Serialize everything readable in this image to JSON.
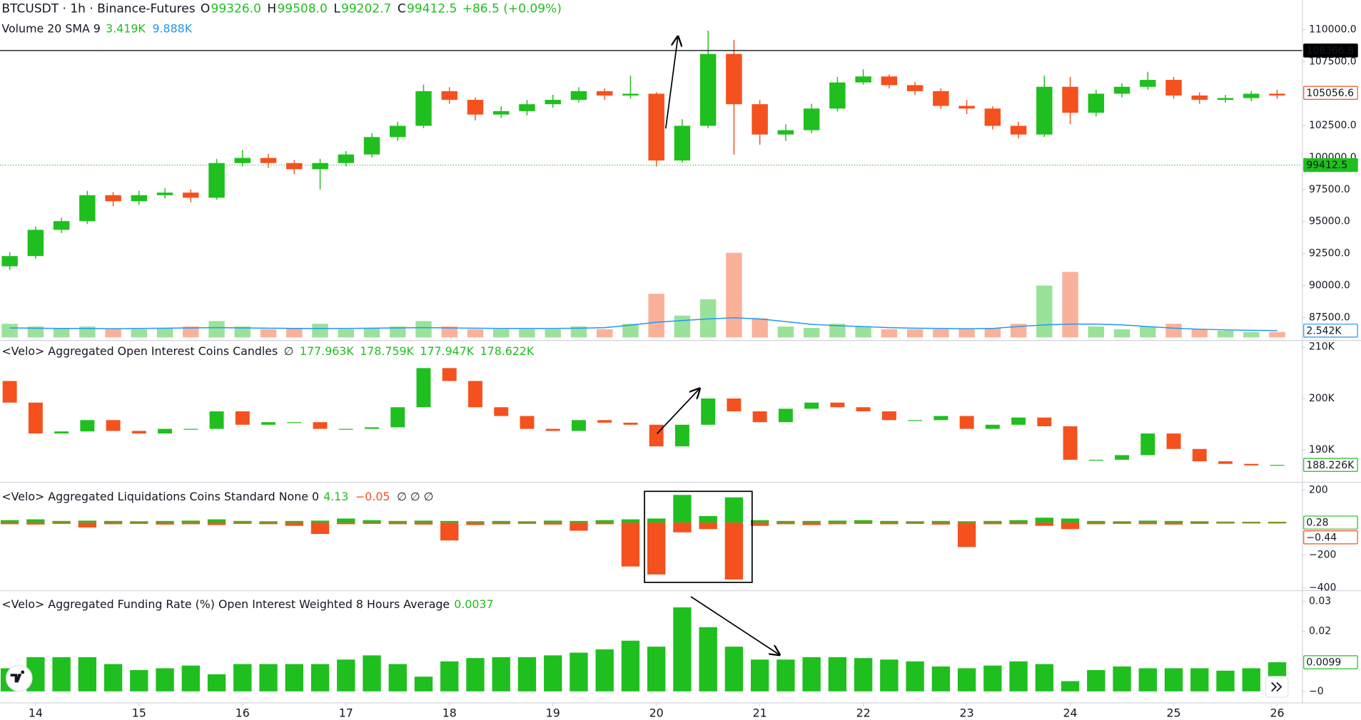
{
  "chart_data": [
    {
      "type": "candlestick",
      "title": "BTCUSDT · 1h · Binance-Futures",
      "legend": [
        {
          "label": "O",
          "value": "99326.0"
        },
        {
          "label": "H",
          "value": "99508.0"
        },
        {
          "label": "L",
          "value": "99202.7"
        },
        {
          "label": "C",
          "value": "99412.5"
        }
      ],
      "change": "+86.5 (+0.09%)",
      "up_color": "#1fbf1f",
      "down_color": "#f4511e",
      "x": [
        13.75,
        14,
        14.25,
        14.5,
        14.75,
        15,
        15.25,
        15.5,
        15.75,
        16,
        16.25,
        16.5,
        16.75,
        17,
        17.25,
        17.5,
        17.75,
        18,
        18.25,
        18.5,
        18.75,
        19,
        19.25,
        19.5,
        19.75,
        20,
        20.25,
        20.5,
        20.75,
        21,
        21.25,
        21.5,
        21.75,
        22,
        22.25,
        22.5,
        22.75,
        23,
        23.25,
        23.5,
        23.75,
        24,
        24.25,
        24.5,
        24.75,
        25,
        25.25,
        25.5,
        25.75,
        26
      ],
      "xlim": [
        13.656,
        26.24
      ],
      "xticks": [
        14,
        15,
        16,
        17,
        18,
        19,
        20,
        21,
        22,
        23,
        24,
        25,
        26
      ],
      "open": [
        91500,
        92300,
        94350,
        95030,
        97060,
        96590,
        97060,
        97260,
        96860,
        99570,
        99970,
        99570,
        99090,
        99570,
        100240,
        101600,
        102480,
        105190,
        104510,
        103360,
        103630,
        104170,
        104510,
        105190,
        104850,
        104990,
        99770,
        102480,
        108100,
        104170,
        101800,
        102140,
        103830,
        105870,
        106340,
        105660,
        105190,
        104040,
        103830,
        102480,
        101800,
        105530,
        103500,
        104990,
        105530,
        106070,
        104850,
        104510,
        104650,
        104990
      ],
      "high": [
        92600,
        94600,
        95300,
        97400,
        97300,
        97400,
        97600,
        97500,
        99900,
        100600,
        100300,
        99800,
        99900,
        100500,
        101900,
        102800,
        105700,
        105500,
        104700,
        104000,
        104500,
        104900,
        105500,
        105400,
        106400,
        105100,
        103000,
        109930,
        109200,
        104500,
        102600,
        104200,
        106300,
        106900,
        106500,
        105900,
        105400,
        104500,
        104000,
        102800,
        106400,
        106300,
        105300,
        105800,
        106700,
        106300,
        105100,
        104900,
        105200,
        105300
      ],
      "low": [
        91200,
        92100,
        94100,
        94800,
        96200,
        96300,
        96800,
        96500,
        96700,
        99300,
        99200,
        98700,
        97500,
        99300,
        100000,
        101300,
        102300,
        104200,
        102900,
        103100,
        103300,
        103900,
        104300,
        104500,
        104600,
        99300,
        99600,
        102300,
        100240,
        101000,
        101300,
        101900,
        103600,
        105700,
        105400,
        104900,
        103800,
        103400,
        102200,
        101500,
        101600,
        102600,
        103200,
        104700,
        105300,
        104600,
        104200,
        104300,
        104400,
        104600
      ],
      "close": [
        92300,
        94350,
        95030,
        97060,
        96590,
        97060,
        97260,
        96860,
        99570,
        99970,
        99570,
        99090,
        99570,
        100240,
        101600,
        102480,
        105190,
        104510,
        103360,
        103630,
        104170,
        104510,
        105190,
        104850,
        104990,
        99770,
        102480,
        108100,
        104170,
        101800,
        102140,
        103830,
        105870,
        106340,
        105660,
        105190,
        104040,
        103830,
        102480,
        101800,
        105530,
        103500,
        104990,
        105530,
        106070,
        104850,
        104510,
        104650,
        104990,
        104850
      ],
      "ylim": [
        85870,
        112300
      ],
      "yticks": [
        {
          "value": 87500,
          "label": "87500.0"
        },
        {
          "value": 90000,
          "label": "90000.0"
        },
        {
          "value": 92500,
          "label": "92500.0"
        },
        {
          "value": 95000,
          "label": "95000.0"
        },
        {
          "value": 97500,
          "label": "97500.0"
        },
        {
          "value": 100000,
          "label": "100000.0"
        },
        {
          "value": 102500,
          "label": "102500.0"
        },
        {
          "value": 105000,
          "label": "105000.0"
        },
        {
          "value": 107500,
          "label": "107500.0"
        },
        {
          "value": 110000,
          "label": "110000.0"
        }
      ],
      "grid": false,
      "markers": [
        {
          "value": 108366.8,
          "style": "line",
          "color": "#000000"
        },
        {
          "value": 105056.6,
          "style": "label",
          "color": "#f4511e"
        },
        {
          "value": 99412.5,
          "style": "dotted",
          "color": "#1fbf1f"
        }
      ],
      "volume": {
        "title": "Volume 20 SMA 9",
        "legend": [
          "3.419K",
          "9.888K"
        ],
        "values": [
          5,
          4,
          3.5,
          4,
          3,
          3,
          3.5,
          4,
          6,
          4,
          3,
          3.5,
          5,
          3,
          3.5,
          4,
          6,
          4,
          3,
          3,
          3,
          3,
          4,
          3,
          5,
          16,
          8,
          14,
          31,
          7,
          4,
          3.5,
          5,
          4,
          3,
          3,
          3,
          3,
          3.5,
          5,
          19,
          24,
          4,
          3,
          4,
          5,
          3,
          2.5,
          2,
          2
        ],
        "ylim": [
          0,
          33
        ],
        "sma": {
          "color": "#2196f3",
          "values": [
            3.5,
            3.4,
            3.3,
            3.3,
            3.2,
            3.3,
            3.4,
            3.5,
            3.6,
            3.5,
            3.4,
            3.3,
            3.3,
            3.3,
            3.4,
            3.5,
            3.6,
            3.5,
            3.4,
            3.3,
            3.3,
            3.3,
            3.4,
            3.6,
            4.5,
            5.6,
            6.2,
            6.8,
            7.2,
            6.8,
            5.8,
            4.8,
            4.3,
            4.0,
            3.6,
            3.4,
            3.3,
            3.2,
            3.3,
            4.0,
            4.6,
            4.9,
            4.9,
            4.6,
            4.0,
            3.4,
            3.0,
            2.8,
            2.6,
            2.5
          ]
        },
        "value_label": "2.542K"
      }
    },
    {
      "type": "candlestick",
      "title": "<Velo> Aggregated Open Interest Coins Candles",
      "empty_symbol": "∅",
      "legend_values": [
        "177.963K",
        "178.759K",
        "177.947K",
        "178.622K"
      ],
      "up_color": "#1fbf1f",
      "down_color": "#f4511e",
      "open": [
        203.4,
        199.2,
        193.2,
        193.6,
        195.8,
        193.7,
        193.2,
        194.1,
        194.1,
        197.5,
        194.9,
        195.4,
        195.4,
        194.1,
        194.1,
        194.4,
        198.3,
        205.9,
        203.4,
        198.3,
        196.6,
        194.1,
        193.7,
        195.8,
        195.3,
        194.9,
        190.7,
        194.9,
        200,
        197.5,
        195.4,
        198.0,
        199.2,
        198.3,
        197.5,
        195.8,
        195.8,
        196.6,
        194.1,
        194.9,
        196.3,
        194.6,
        188.1,
        188.1,
        189.0,
        193.2,
        190.2,
        187.8,
        187.3,
        187.0
      ],
      "close": [
        199.2,
        193.2,
        193.6,
        195.8,
        193.7,
        193.2,
        194.1,
        194.1,
        197.5,
        194.9,
        195.4,
        195.4,
        194.1,
        194.1,
        194.4,
        198.3,
        205.9,
        203.4,
        198.3,
        196.6,
        194.1,
        193.7,
        195.8,
        195.3,
        194.9,
        190.7,
        194.9,
        200,
        197.5,
        195.4,
        198.0,
        199.2,
        198.3,
        197.5,
        195.8,
        195.8,
        196.6,
        194.1,
        194.9,
        196.3,
        194.6,
        188.1,
        188.1,
        189.0,
        193.2,
        190.2,
        187.8,
        187.3,
        187.0,
        187.1
      ],
      "ylim": [
        183.9,
        210
      ],
      "yticks": [
        {
          "value": 190,
          "label": "190K"
        },
        {
          "value": 200,
          "label": "200K"
        },
        {
          "value": 210,
          "label": "210K"
        }
      ],
      "value_label": "188.226K"
    },
    {
      "type": "bar",
      "title": "<Velo> Aggregated Liquidations Coins Standard None 0",
      "legend_values": [
        "4.13",
        "−0.05"
      ],
      "empty_symbols": "∅ ∅ ∅",
      "series": [
        {
          "color": "#1fbf1f",
          "values": [
            15,
            20,
            10,
            12,
            10,
            8,
            10,
            12,
            20,
            10,
            8,
            10,
            12,
            25,
            15,
            10,
            12,
            10,
            8,
            10,
            8,
            12,
            10,
            15,
            20,
            25,
            170,
            40,
            155,
            15,
            10,
            10,
            12,
            15,
            10,
            8,
            10,
            8,
            10,
            15,
            30,
            25,
            10,
            8,
            12,
            10,
            8,
            6,
            5,
            5
          ]
        },
        {
          "color": "#f4511e",
          "values": [
            -10,
            -12,
            -8,
            -30,
            -10,
            -8,
            -12,
            -10,
            -15,
            -8,
            -10,
            -20,
            -70,
            -10,
            -8,
            -10,
            -12,
            -110,
            -15,
            -10,
            -8,
            -12,
            -50,
            -10,
            -270,
            -319,
            -60,
            -40,
            -350,
            -20,
            -10,
            -15,
            -10,
            -8,
            -10,
            -8,
            -12,
            -150,
            -10,
            -10,
            -20,
            -40,
            -10,
            -8,
            -10,
            -12,
            -8,
            -6,
            -5,
            -5
          ]
        }
      ],
      "ylim": [
        -413,
        248
      ],
      "yticks": [
        {
          "value": -400,
          "label": "−400"
        },
        {
          "value": -200,
          "label": "−200"
        },
        200
      ],
      "axis_labels": [
        "0.28",
        "−0.44"
      ]
    },
    {
      "type": "bar",
      "title": "<Velo> Aggregated Funding Rate (%) Open Interest Weighted 8 Hours Average",
      "legend_values": [
        "0.0037"
      ],
      "color": "#1fbf1f",
      "values": [
        0.0077,
        0.0114,
        0.0114,
        0.0114,
        0.0091,
        0.0071,
        0.0077,
        0.0086,
        0.0057,
        0.0091,
        0.0091,
        0.0091,
        0.0091,
        0.0106,
        0.012,
        0.0091,
        0.0049,
        0.01,
        0.0111,
        0.0114,
        0.0114,
        0.012,
        0.0129,
        0.014,
        0.0169,
        0.0149,
        0.028,
        0.0214,
        0.0149,
        0.0106,
        0.0106,
        0.0114,
        0.0114,
        0.0111,
        0.0106,
        0.01,
        0.0083,
        0.0077,
        0.0086,
        0.01,
        0.0091,
        0.0034,
        0.0071,
        0.0083,
        0.0077,
        0.0077,
        0.0077,
        0.0069,
        0.0077,
        0.0097
      ],
      "ylim": [
        -0.0037,
        0.0333
      ],
      "yticks": [
        {
          "value": 0,
          "label": "−0"
        },
        0.02,
        0.03
      ],
      "axis_label": "0.0099"
    }
  ]
}
